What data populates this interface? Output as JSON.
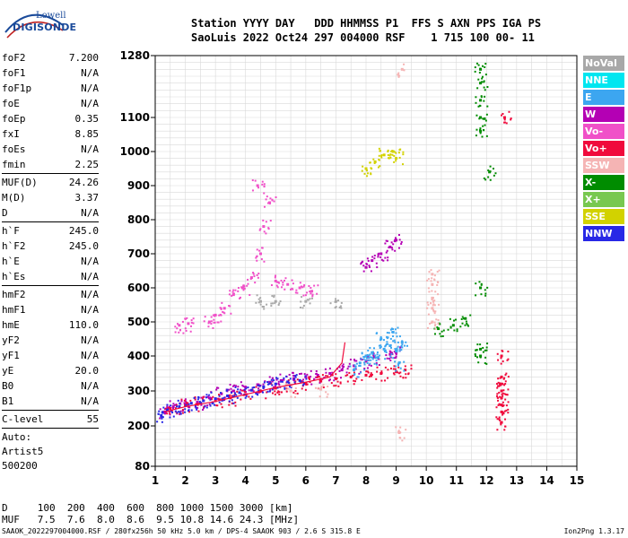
{
  "logo": {
    "line1": "Lowell",
    "line2": "DIGISONDE"
  },
  "header": {
    "row1": "Station YYYY DAY   DDD HHMMSS P1  FFS S AXN PPS IGA PS",
    "row2": "SaoLuis 2022 Oct24 297 004000 RSF    1 715 100 00- 11"
  },
  "params": [
    {
      "k": "foF2",
      "v": "7.200"
    },
    {
      "k": "foF1",
      "v": "N/A"
    },
    {
      "k": "foF1p",
      "v": "N/A"
    },
    {
      "k": "foE",
      "v": "N/A"
    },
    {
      "k": "foEp",
      "v": "0.35"
    },
    {
      "k": "fxI",
      "v": "8.85"
    },
    {
      "k": "foEs",
      "v": "N/A"
    },
    {
      "k": "fmin",
      "v": "2.25"
    },
    {
      "k": "MUF(D)",
      "v": "24.26"
    },
    {
      "k": "M(D)",
      "v": "3.37"
    },
    {
      "k": "D",
      "v": "N/A"
    },
    {
      "k": "h`F",
      "v": "245.0"
    },
    {
      "k": "h`F2",
      "v": "245.0"
    },
    {
      "k": "h`E",
      "v": "N/A"
    },
    {
      "k": "h`Es",
      "v": "N/A"
    },
    {
      "k": "hmF2",
      "v": "N/A"
    },
    {
      "k": "hmF1",
      "v": "N/A"
    },
    {
      "k": "hmE",
      "v": "110.0"
    },
    {
      "k": "yF2",
      "v": "N/A"
    },
    {
      "k": "yF1",
      "v": "N/A"
    },
    {
      "k": "yE",
      "v": "20.0"
    },
    {
      "k": "B0",
      "v": "N/A"
    },
    {
      "k": "B1",
      "v": "N/A"
    },
    {
      "k": "C-level",
      "v": "55"
    }
  ],
  "auto": {
    "l1": "Auto:",
    "l2": "Artist5",
    "l3": "500200"
  },
  "legend": [
    {
      "label": "NoVal",
      "color": "#a8a8a8"
    },
    {
      "label": "NNE",
      "color": "#00e6f0"
    },
    {
      "label": "E",
      "color": "#3ca6f0"
    },
    {
      "label": "W",
      "color": "#b400b4"
    },
    {
      "label": "Vo-",
      "color": "#f050c8"
    },
    {
      "label": "Vo+",
      "color": "#f00a3c"
    },
    {
      "label": "SSW",
      "color": "#f5b4b4"
    },
    {
      "label": "X-",
      "color": "#008c00"
    },
    {
      "label": "X+",
      "color": "#78c850"
    },
    {
      "label": "SSE",
      "color": "#d2d200"
    },
    {
      "label": "NNW",
      "color": "#2828e6"
    }
  ],
  "muf": {
    "row1": "D     100  200  400  600  800 1000 1500 3000 [km]",
    "row2": "MUF   7.5  7.6  8.0  8.6  9.5 10.8 14.6 24.3 [MHz]"
  },
  "footer": {
    "left": "SAAOK_2022297004000.RSF / 280fx256h 50 kHz 5.0 km / DPS-4 SAAOK 903 / 2.6 S 315.8 E",
    "right": "Ion2Png 1.3.17"
  },
  "chart_data": {
    "type": "scatter",
    "xlim": [
      1,
      15
    ],
    "ylim": [
      80,
      1280
    ],
    "xticks": [
      "1",
      "2",
      "3",
      "4",
      "5",
      "6",
      "7",
      "8",
      "9",
      "10",
      "11",
      "12",
      "13",
      "14",
      "15"
    ],
    "yticks": [
      "80",
      "200",
      "300",
      "400",
      "500",
      "600",
      "700",
      "800",
      "900",
      "1000",
      "1100",
      "1280"
    ],
    "grid": true,
    "series": [
      {
        "color": "#b400b4",
        "points": [
          [
            1.3,
            240
          ],
          [
            1.6,
            255
          ],
          [
            2.0,
            262
          ],
          [
            2.4,
            268
          ],
          [
            2.8,
            280
          ],
          [
            3.2,
            292
          ],
          [
            3.6,
            300
          ],
          [
            4.0,
            310
          ],
          [
            4.4,
            318
          ],
          [
            4.8,
            325
          ],
          [
            5.2,
            330
          ],
          [
            5.6,
            335
          ],
          [
            6.0,
            340
          ],
          [
            6.4,
            345
          ],
          [
            6.8,
            350
          ],
          [
            7.2,
            360
          ],
          [
            7.6,
            372
          ],
          [
            8.0,
            385
          ],
          [
            8.4,
            395
          ],
          [
            8.8,
            405
          ],
          [
            9.0,
            410
          ]
        ]
      },
      {
        "color": "#f00a3c",
        "points": [
          [
            1.5,
            250
          ],
          [
            2.0,
            258
          ],
          [
            2.5,
            265
          ],
          [
            3.0,
            272
          ],
          [
            3.5,
            280
          ],
          [
            4.0,
            290
          ],
          [
            4.5,
            300
          ],
          [
            5.0,
            308
          ],
          [
            5.5,
            315
          ],
          [
            6.0,
            322
          ],
          [
            6.5,
            328
          ],
          [
            7.0,
            335
          ],
          [
            7.5,
            340
          ],
          [
            8.0,
            345
          ],
          [
            8.5,
            350
          ],
          [
            9.0,
            355
          ],
          [
            9.3,
            360
          ]
        ]
      },
      {
        "color": "#2828e6",
        "points": [
          [
            1.2,
            230
          ],
          [
            1.4,
            245
          ],
          [
            1.8,
            255
          ],
          [
            2.2,
            265
          ],
          [
            2.6,
            272
          ],
          [
            3.0,
            278
          ],
          [
            3.4,
            286
          ],
          [
            3.8,
            295
          ],
          [
            4.2,
            302
          ],
          [
            4.6,
            312
          ],
          [
            5.0,
            320
          ],
          [
            5.4,
            326
          ],
          [
            5.8,
            330
          ]
        ]
      },
      {
        "color": "#3ca6f0",
        "points": [
          [
            7.6,
            360
          ],
          [
            7.8,
            380
          ],
          [
            8.0,
            400
          ],
          [
            8.2,
            410
          ],
          [
            8.4,
            395
          ],
          [
            8.6,
            420
          ],
          [
            8.8,
            430
          ],
          [
            9.0,
            415
          ],
          [
            9.2,
            440
          ],
          [
            8.5,
            450
          ],
          [
            8.9,
            470
          ],
          [
            9.1,
            380
          ]
        ]
      },
      {
        "color": "#f050c8",
        "points": [
          [
            3.6,
            580
          ],
          [
            3.9,
            600
          ],
          [
            4.2,
            630
          ],
          [
            4.5,
            700
          ],
          [
            4.6,
            780
          ],
          [
            4.8,
            850
          ],
          [
            4.4,
            900
          ],
          [
            5.0,
            620
          ],
          [
            5.4,
            610
          ],
          [
            5.8,
            600
          ],
          [
            6.2,
            590
          ],
          [
            2.8,
            500
          ],
          [
            3.0,
            520
          ],
          [
            3.3,
            540
          ],
          [
            1.8,
            490
          ],
          [
            2.1,
            495
          ]
        ]
      },
      {
        "color": "#b400b4",
        "points": [
          [
            8.2,
            680
          ],
          [
            8.5,
            700
          ],
          [
            8.8,
            720
          ],
          [
            9.0,
            740
          ],
          [
            8.0,
            660
          ]
        ]
      },
      {
        "color": "#d2d200",
        "points": [
          [
            8.0,
            950
          ],
          [
            8.3,
            970
          ],
          [
            8.6,
            990
          ],
          [
            8.9,
            1000
          ],
          [
            9.0,
            980
          ]
        ]
      },
      {
        "color": "#008c00",
        "points": [
          [
            11.8,
            1240
          ],
          [
            11.8,
            1200
          ],
          [
            11.8,
            1150
          ],
          [
            11.8,
            1100
          ],
          [
            11.8,
            1060
          ],
          [
            11.8,
            600
          ],
          [
            11.8,
            400
          ],
          [
            11.8,
            420
          ],
          [
            10.4,
            480
          ],
          [
            10.9,
            490
          ],
          [
            11.3,
            510
          ],
          [
            12.1,
            940
          ]
        ]
      },
      {
        "color": "#f00a3c",
        "points": [
          [
            12.5,
            340
          ],
          [
            12.5,
            320
          ],
          [
            12.5,
            300
          ],
          [
            12.5,
            280
          ],
          [
            12.5,
            260
          ],
          [
            12.5,
            240
          ],
          [
            12.5,
            210
          ],
          [
            12.5,
            400
          ],
          [
            12.6,
            1100
          ]
        ]
      },
      {
        "color": "#f5b4b4",
        "points": [
          [
            10.2,
            640
          ],
          [
            10.2,
            610
          ],
          [
            10.2,
            570
          ],
          [
            10.2,
            540
          ],
          [
            10.2,
            500
          ],
          [
            9.2,
            1240
          ],
          [
            9.1,
            180
          ],
          [
            5.5,
            300
          ],
          [
            6.5,
            305
          ]
        ]
      },
      {
        "color": "#a8a8a8",
        "points": [
          [
            4.5,
            560
          ],
          [
            5.0,
            560
          ],
          [
            6.0,
            560
          ],
          [
            7.0,
            560
          ]
        ]
      }
    ]
  }
}
